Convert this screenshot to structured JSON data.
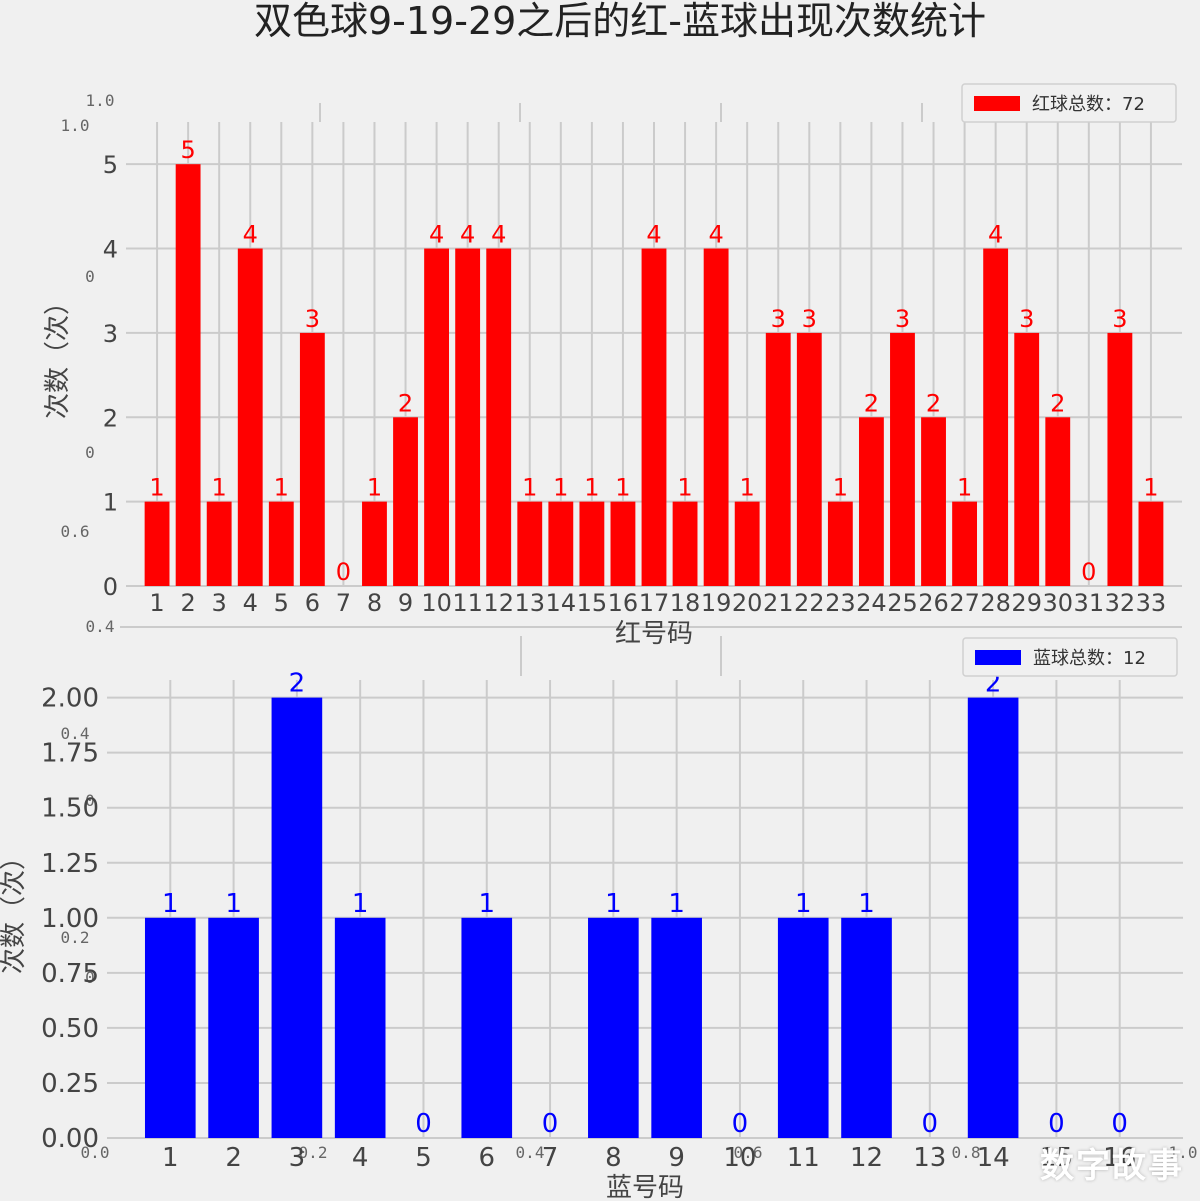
{
  "figure": {
    "title": "双色球9-19-29之后的红-蓝球出现次数统计",
    "background": "#f0f0f0",
    "grid_color": "#cbcbcb",
    "watermark": "数字故事",
    "ghost_ticks": [
      "1.0",
      "1.0",
      "0",
      "0",
      "0.6",
      "0.4",
      "0.4",
      "0",
      "0.2",
      "0",
      "0.0",
      "0.2",
      "0.4",
      "0.6",
      "0.8",
      "1.0"
    ]
  },
  "chart_data": [
    {
      "type": "bar",
      "title": "",
      "color": "#ff0000",
      "legend": "红球总数：72",
      "legend_position": "top-right",
      "xlabel": "红号码",
      "ylabel": "次数（次）",
      "ylim": [
        0,
        5.5
      ],
      "yticks": [
        "0",
        "1",
        "2",
        "3",
        "4",
        "5"
      ],
      "grid": true,
      "categories": [
        "1",
        "2",
        "3",
        "4",
        "5",
        "6",
        "7",
        "8",
        "9",
        "10",
        "11",
        "12",
        "13",
        "14",
        "15",
        "16",
        "17",
        "18",
        "19",
        "20",
        "21",
        "22",
        "23",
        "24",
        "25",
        "26",
        "27",
        "28",
        "29",
        "30",
        "31",
        "32",
        "33"
      ],
      "values": [
        1,
        5,
        1,
        4,
        1,
        3,
        0,
        1,
        2,
        4,
        4,
        4,
        1,
        1,
        1,
        1,
        4,
        1,
        4,
        1,
        3,
        3,
        1,
        2,
        3,
        2,
        1,
        4,
        3,
        2,
        0,
        3,
        1
      ]
    },
    {
      "type": "bar",
      "title": "",
      "color": "#0000ff",
      "legend": "蓝球总数：12",
      "legend_position": "top-right",
      "xlabel": "蓝号码",
      "ylabel": "次数（次）",
      "ylim": [
        0,
        2.08
      ],
      "yticks": [
        "0.00",
        "0.25",
        "0.50",
        "0.75",
        "1.00",
        "1.25",
        "1.50",
        "1.75",
        "2.00"
      ],
      "grid": true,
      "categories": [
        "1",
        "2",
        "3",
        "4",
        "5",
        "6",
        "7",
        "8",
        "9",
        "10",
        "11",
        "12",
        "13",
        "14",
        "15",
        "16"
      ],
      "values": [
        1,
        1,
        2,
        1,
        0,
        1,
        0,
        1,
        1,
        0,
        1,
        1,
        0,
        2,
        0,
        0
      ]
    }
  ]
}
